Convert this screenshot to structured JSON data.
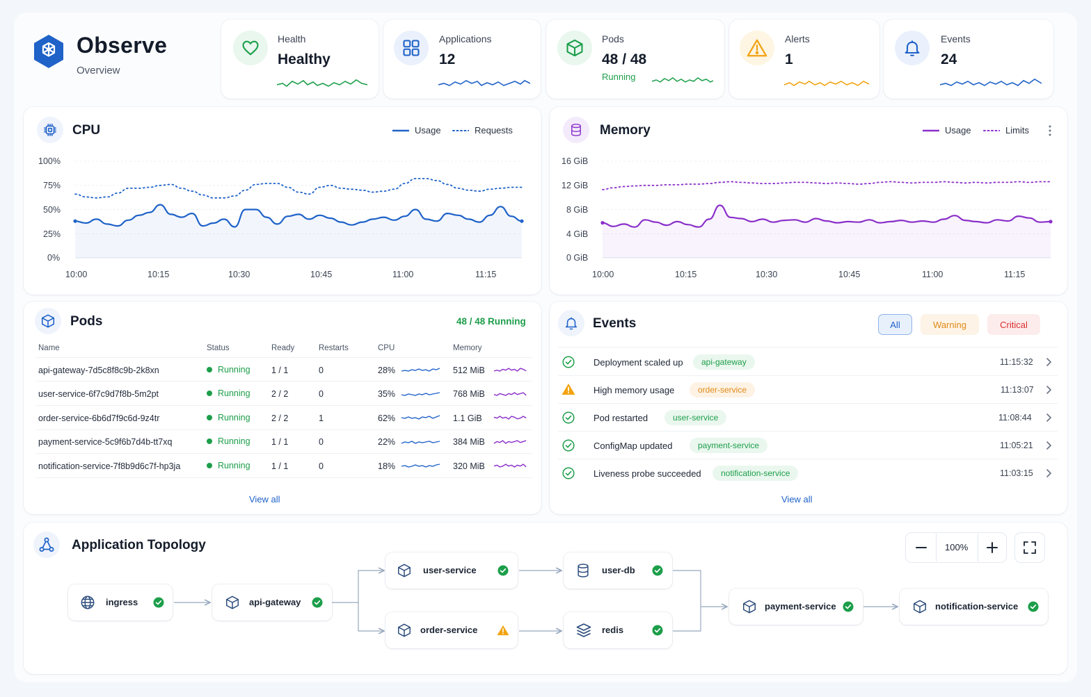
{
  "app": {
    "title": "Observe",
    "subtitle": "Overview"
  },
  "stats": [
    {
      "id": "health",
      "label": "Health",
      "value": "Healthy",
      "icon": "heart-icon",
      "color": "#1c9e4a"
    },
    {
      "id": "applications",
      "label": "Applications",
      "value": "12",
      "icon": "grid-icon",
      "color": "#1f62c8"
    },
    {
      "id": "pods",
      "label": "Pods",
      "value": "48 / 48",
      "status": "Running",
      "icon": "cube-icon",
      "color": "#1c9e4a"
    },
    {
      "id": "alerts",
      "label": "Alerts",
      "value": "1",
      "icon": "warning-icon",
      "color": "#f2a311"
    },
    {
      "id": "events",
      "label": "Events",
      "value": "24",
      "icon": "bell-icon",
      "color": "#1f62c8"
    }
  ],
  "cpu": {
    "title": "CPU",
    "legend": {
      "usage": "Usage",
      "requests": "Requests"
    },
    "y_ticks": [
      "100%",
      "75%",
      "50%",
      "25%",
      "0%"
    ],
    "x_ticks": [
      "10:00",
      "10:15",
      "10:30",
      "10:45",
      "11:00",
      "11:15"
    ]
  },
  "memory": {
    "title": "Memory",
    "legend": {
      "usage": "Usage",
      "limits": "Limits"
    },
    "y_ticks": [
      "16 GiB",
      "12 GiB",
      "8 GiB",
      "4 GiB",
      "0 GiB"
    ],
    "x_ticks": [
      "10:00",
      "10:15",
      "10:30",
      "10:45",
      "11:00",
      "11:15"
    ]
  },
  "chart_data": [
    {
      "type": "line",
      "title": "CPU",
      "ylim": [
        0,
        100
      ],
      "x": [
        "10:00",
        "10:02",
        "10:04",
        "10:06",
        "10:08",
        "10:10",
        "10:12",
        "10:14",
        "10:16",
        "10:18",
        "10:20",
        "10:22",
        "10:24",
        "10:26",
        "10:28",
        "10:30",
        "10:32",
        "10:34",
        "10:36",
        "10:38",
        "10:40",
        "10:42",
        "10:44",
        "10:46",
        "10:48",
        "10:50",
        "10:52",
        "10:54",
        "10:56",
        "10:58",
        "11:00",
        "11:02",
        "11:04",
        "11:06",
        "11:08",
        "11:10",
        "11:12",
        "11:14",
        "11:16",
        "11:18",
        "11:20",
        "11:22",
        "11:24"
      ],
      "series": [
        {
          "name": "Usage",
          "values": [
            38,
            36,
            40,
            35,
            33,
            39,
            44,
            47,
            55,
            45,
            42,
            46,
            33,
            36,
            40,
            32,
            50,
            50,
            42,
            35,
            43,
            45,
            40,
            44,
            41,
            37,
            34,
            37,
            40,
            42,
            39,
            43,
            50,
            40,
            38,
            46,
            44,
            40,
            37,
            44,
            53,
            43,
            38
          ]
        },
        {
          "name": "Requests",
          "values": [
            66,
            63,
            62,
            63,
            67,
            72,
            72,
            73,
            75,
            76,
            72,
            69,
            65,
            62,
            62,
            64,
            70,
            76,
            77,
            77,
            73,
            68,
            66,
            73,
            75,
            72,
            71,
            70,
            68,
            69,
            71,
            77,
            82,
            82,
            80,
            76,
            72,
            70,
            69,
            71,
            72,
            73,
            73
          ]
        }
      ]
    },
    {
      "type": "line",
      "title": "Memory",
      "ylim": [
        0,
        16
      ],
      "x": [
        "10:00",
        "10:02",
        "10:04",
        "10:06",
        "10:08",
        "10:10",
        "10:12",
        "10:14",
        "10:16",
        "10:18",
        "10:20",
        "10:22",
        "10:24",
        "10:26",
        "10:28",
        "10:30",
        "10:32",
        "10:34",
        "10:36",
        "10:38",
        "10:40",
        "10:42",
        "10:44",
        "10:46",
        "10:48",
        "10:50",
        "10:52",
        "10:54",
        "10:56",
        "10:58",
        "11:00",
        "11:02",
        "11:04",
        "11:06",
        "11:08",
        "11:10",
        "11:12",
        "11:14",
        "11:16",
        "11:18",
        "11:20",
        "11:22",
        "11:24"
      ],
      "series": [
        {
          "name": "Usage",
          "values": [
            5.8,
            5.2,
            5.6,
            5.1,
            6.3,
            5.9,
            5.4,
            6.0,
            5.5,
            5.1,
            6.4,
            8.7,
            6.7,
            6.5,
            6.0,
            6.4,
            5.9,
            6.2,
            6.3,
            5.9,
            6.5,
            6.1,
            5.8,
            6.0,
            5.9,
            6.3,
            5.8,
            6.0,
            6.2,
            5.9,
            6.1,
            5.9,
            6.4,
            7.0,
            6.2,
            6.0,
            5.8,
            6.3,
            6.1,
            6.9,
            6.6,
            5.9,
            6.0
          ]
        },
        {
          "name": "Limits",
          "values": [
            11.3,
            11.6,
            11.8,
            11.9,
            12.0,
            12.0,
            12.1,
            12.1,
            12.2,
            12.2,
            12.3,
            12.5,
            12.6,
            12.5,
            12.4,
            12.3,
            12.3,
            12.4,
            12.5,
            12.5,
            12.4,
            12.3,
            12.4,
            12.3,
            12.2,
            12.3,
            12.5,
            12.6,
            12.5,
            12.4,
            12.5,
            12.5,
            12.6,
            12.5,
            12.4,
            12.5,
            12.4,
            12.5,
            12.5,
            12.6,
            12.5,
            12.6,
            12.6
          ]
        }
      ]
    }
  ],
  "pods": {
    "title": "Pods",
    "summary": "48 / 48 Running",
    "columns": [
      "Name",
      "Status",
      "Ready",
      "Restarts",
      "CPU",
      "Memory"
    ],
    "rows": [
      {
        "name": "api-gateway-7d5c8f8c9b-2k8xn",
        "status": "Running",
        "ready": "1 / 1",
        "restarts": "0",
        "cpu": "28%",
        "memory": "512 MiB"
      },
      {
        "name": "user-service-6f7c9d7f8b-5m2pt",
        "status": "Running",
        "ready": "2 / 2",
        "restarts": "0",
        "cpu": "35%",
        "memory": "768 MiB"
      },
      {
        "name": "order-service-6b6d7f9c6d-9z4tr",
        "status": "Running",
        "ready": "2 / 2",
        "restarts": "1",
        "cpu": "62%",
        "memory": "1.1 GiB"
      },
      {
        "name": "payment-service-5c9f6b7d4b-tt7xq",
        "status": "Running",
        "ready": "1 / 1",
        "restarts": "0",
        "cpu": "22%",
        "memory": "384 MiB"
      },
      {
        "name": "notification-service-7f8b9d6c7f-hp3ja",
        "status": "Running",
        "ready": "1 / 1",
        "restarts": "0",
        "cpu": "18%",
        "memory": "320 MiB"
      }
    ],
    "view_all": "View all"
  },
  "events": {
    "title": "Events",
    "filters": {
      "all": "All",
      "warning": "Warning",
      "critical": "Critical"
    },
    "items": [
      {
        "title": "Deployment scaled up",
        "tag": "api-gateway",
        "time": "11:15:32",
        "level": "success"
      },
      {
        "title": "High memory usage",
        "tag": "order-service",
        "time": "11:13:07",
        "level": "warning"
      },
      {
        "title": "Pod restarted",
        "tag": "user-service",
        "time": "11:08:44",
        "level": "success"
      },
      {
        "title": "ConfigMap updated",
        "tag": "payment-service",
        "time": "11:05:21",
        "level": "success"
      },
      {
        "title": "Liveness probe succeeded",
        "tag": "notification-service",
        "time": "11:03:15",
        "level": "success"
      }
    ],
    "view_all": "View all"
  },
  "topology": {
    "title": "Application Topology",
    "zoom": "100%",
    "nodes": [
      {
        "id": "ingress",
        "label": "ingress",
        "icon": "globe-icon",
        "status": "ok"
      },
      {
        "id": "api-gateway",
        "label": "api-gateway",
        "icon": "cube-icon",
        "status": "ok"
      },
      {
        "id": "user-service",
        "label": "user-service",
        "icon": "cube-icon",
        "status": "ok"
      },
      {
        "id": "order-service",
        "label": "order-service",
        "icon": "cube-icon",
        "status": "warning"
      },
      {
        "id": "user-db",
        "label": "user-db",
        "icon": "database-icon",
        "status": "ok"
      },
      {
        "id": "redis",
        "label": "redis",
        "icon": "layers-icon",
        "status": "ok"
      },
      {
        "id": "payment-service",
        "label": "payment-service",
        "icon": "cube-icon",
        "status": "ok"
      },
      {
        "id": "notification-service",
        "label": "notification-service",
        "icon": "cube-icon",
        "status": "ok"
      }
    ]
  },
  "colors": {
    "blue": "#1f62c8",
    "purple": "#8a2fc9",
    "green": "#1c9e4a",
    "orange": "#f2a311",
    "red": "#d92d2d"
  }
}
